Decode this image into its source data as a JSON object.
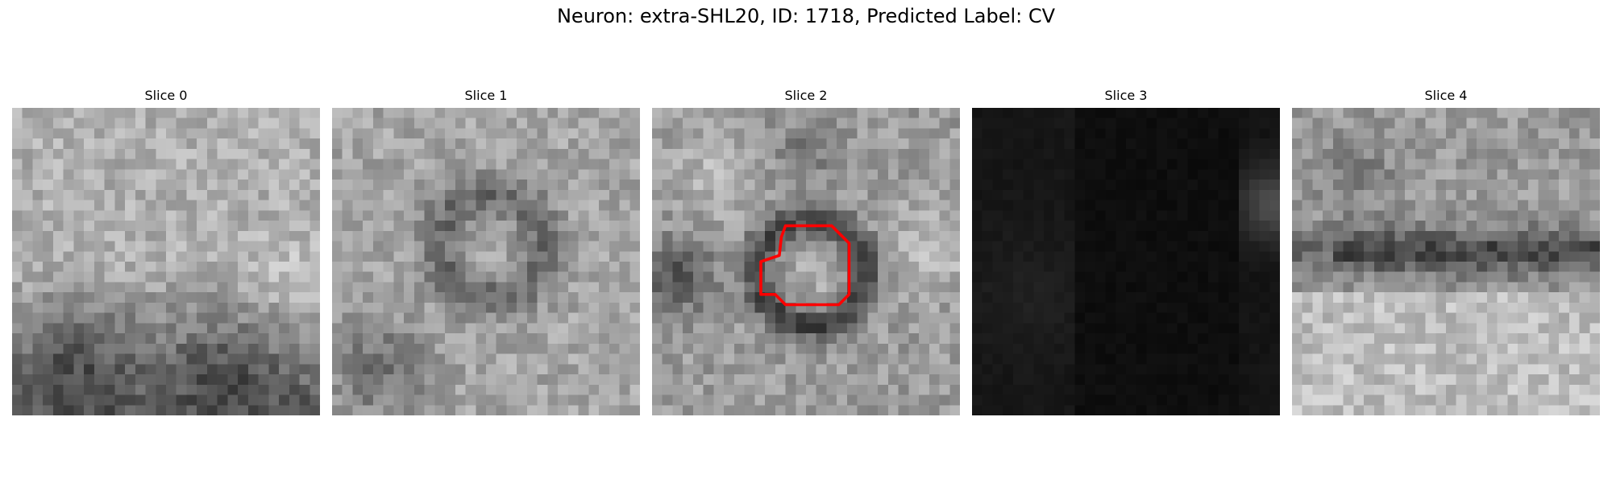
{
  "figure": {
    "title": "Neuron: extra-SHL20, ID: 1718, Predicted Label: CV"
  },
  "panels": [
    {
      "title": "Slice 0",
      "image": "grayscale-noise-slice",
      "pattern": "bright-top-dark-bottom"
    },
    {
      "title": "Slice 1",
      "image": "grayscale-noise-slice",
      "pattern": "dark-ring"
    },
    {
      "title": "Slice 2",
      "image": "grayscale-noise-slice",
      "pattern": "cell-with-contour",
      "contour_color": "#ff0000"
    },
    {
      "title": "Slice 3",
      "image": "grayscale-noise-slice",
      "pattern": "mostly-black"
    },
    {
      "title": "Slice 4",
      "image": "grayscale-noise-slice",
      "pattern": "dark-band-bright-bottom"
    }
  ]
}
